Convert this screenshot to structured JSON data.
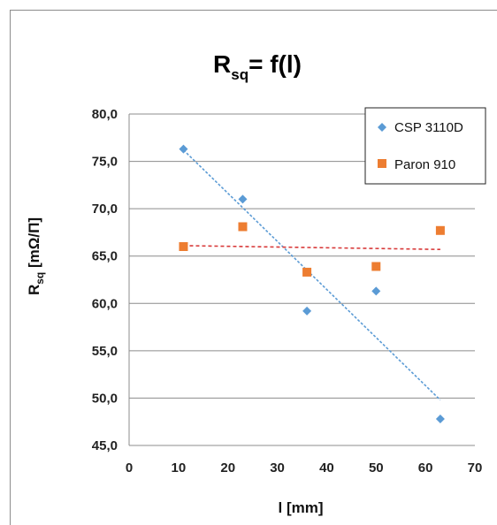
{
  "chart_data": {
    "type": "scatter",
    "title_main": "R",
    "title_sub": "sq",
    "title_rest": "= f(l)",
    "xlabel": "l [mm]",
    "ylabel_main": "R",
    "ylabel_sub": "sq",
    "ylabel_rest": " [mΩ/Π]",
    "xlim": [
      0,
      70
    ],
    "ylim": [
      45,
      80
    ],
    "x_ticks": [
      "0",
      "10",
      "20",
      "30",
      "40",
      "50",
      "60",
      "70"
    ],
    "y_ticks": [
      "45,0",
      "50,0",
      "55,0",
      "60,0",
      "65,0",
      "70,0",
      "75,0",
      "80,0"
    ],
    "grid": "horizontal",
    "legend_position": "top-right",
    "series": [
      {
        "name": "CSP 3110D",
        "marker": "diamond",
        "color": "#5b9bd5",
        "x": [
          11,
          23,
          36,
          50,
          63
        ],
        "y": [
          76.3,
          71.0,
          59.2,
          61.3,
          47.8
        ],
        "trendline": {
          "x": [
            11,
            63
          ],
          "y": [
            76.2,
            49.8
          ]
        }
      },
      {
        "name": "Paron 910",
        "marker": "square",
        "color": "#ed7d31",
        "x": [
          11,
          23,
          36,
          50,
          63
        ],
        "y": [
          66.0,
          68.1,
          63.3,
          63.9,
          67.7
        ],
        "trendline": {
          "x": [
            11,
            63
          ],
          "y": [
            66.1,
            65.7
          ]
        }
      }
    ]
  }
}
